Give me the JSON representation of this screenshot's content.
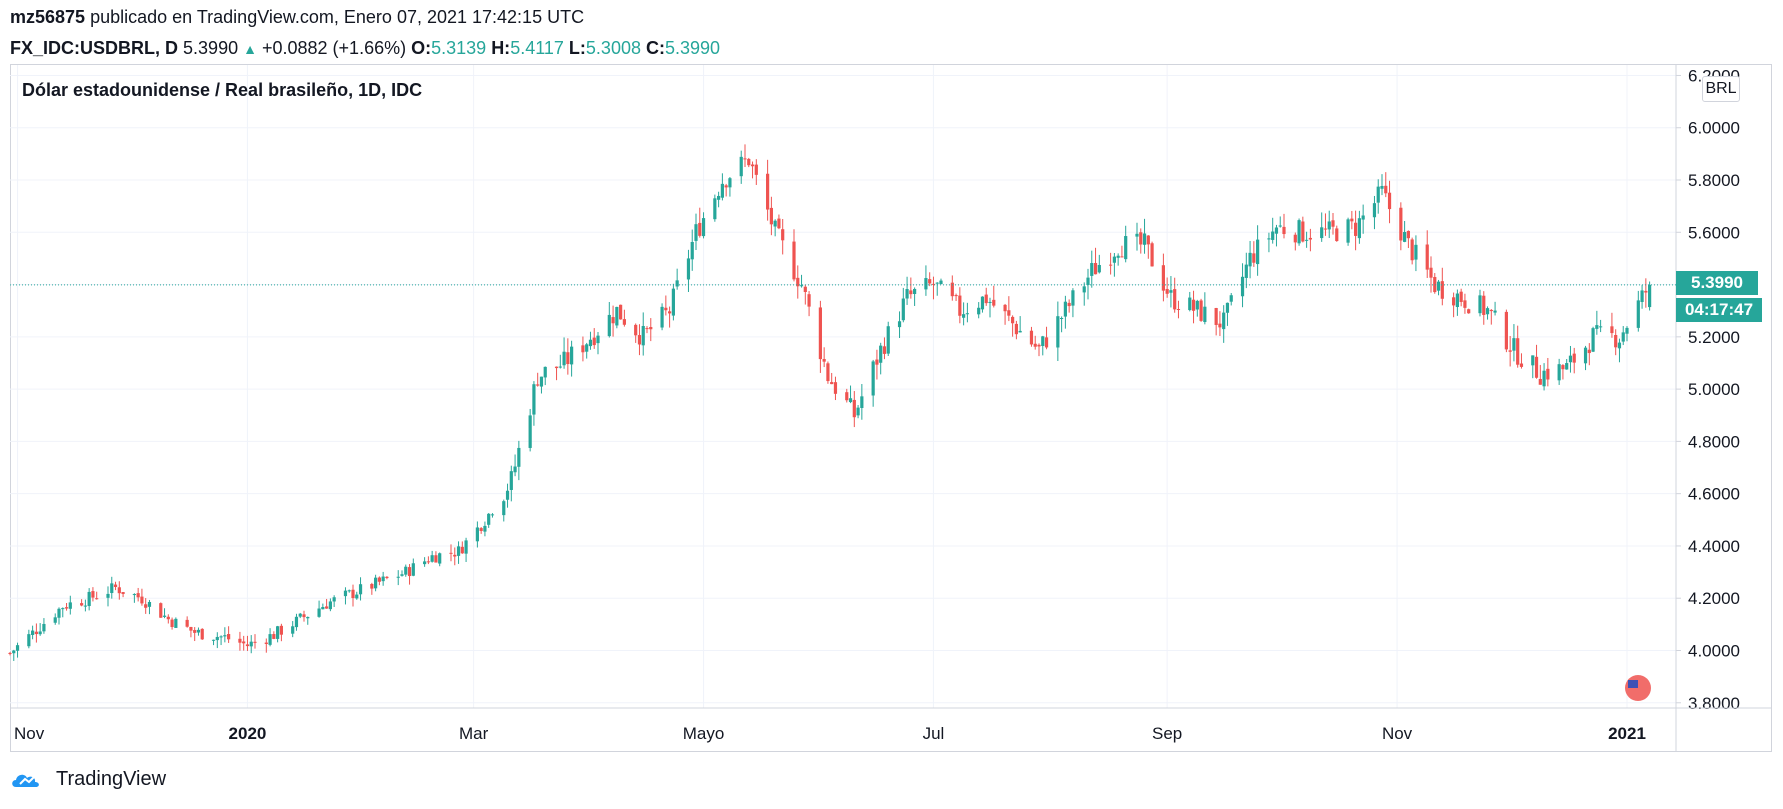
{
  "header": {
    "author": "mz56875",
    "published_text": "publicado en TradingView.com, Enero 07, 2021 17:42:15 UTC",
    "symbol": "FX_IDC:USDBRL, D",
    "last": "5.3990",
    "change_arrow": "▲",
    "change": "+0.0882 (+1.66%)",
    "o_label": "O:",
    "o_value": "5.3139",
    "h_label": "H:",
    "h_value": "5.4117",
    "l_label": "L:",
    "l_value": "5.3008",
    "c_label": "C:",
    "c_value": "5.3990"
  },
  "chart_title": "Dólar estadounidense / Real brasileño, 1D, IDC",
  "currency_badge": "BRL",
  "price_tag": "5.3990",
  "countdown_tag": "04:17:47",
  "footer_brand": "TradingView",
  "colors": {
    "up": "#26a69a",
    "down": "#ef5350",
    "grid": "#f0f3fa",
    "axis_text": "#131722"
  },
  "chart_data": {
    "type": "candlestick",
    "title": "Dólar estadounidense / Real brasileño, 1D, IDC",
    "symbol": "FX_IDC:USDBRL",
    "interval": "1D",
    "ylim": [
      3.78,
      6.24
    ],
    "xlim": [
      "2019-10-30",
      "2021-01-14"
    ],
    "y_ticks": [
      "6.2000",
      "6.0000",
      "5.8000",
      "5.6000",
      "5.4000",
      "5.2000",
      "5.0000",
      "4.8000",
      "4.6000",
      "4.4000",
      "4.2000",
      "4.0000",
      "3.8000"
    ],
    "x_ticks": [
      {
        "label": "Nov",
        "date": "2019-11-01",
        "bold": false
      },
      {
        "label": "2020",
        "date": "2020-01-01",
        "bold": true
      },
      {
        "label": "Mar",
        "date": "2020-03-01",
        "bold": false
      },
      {
        "label": "Mayo",
        "date": "2020-05-01",
        "bold": false
      },
      {
        "label": "Jul",
        "date": "2020-07-01",
        "bold": false
      },
      {
        "label": "Sep",
        "date": "2020-09-01",
        "bold": false
      },
      {
        "label": "Nov",
        "date": "2020-11-01",
        "bold": false
      },
      {
        "label": "2021",
        "date": "2021-01-01",
        "bold": true
      }
    ],
    "last_price": 5.399,
    "close_path": [
      [
        "2019-10-30",
        3.99
      ],
      [
        "2019-11-06",
        4.08
      ],
      [
        "2019-11-13",
        4.17
      ],
      [
        "2019-11-20",
        4.2
      ],
      [
        "2019-11-27",
        4.24
      ],
      [
        "2019-12-04",
        4.2
      ],
      [
        "2019-12-11",
        4.12
      ],
      [
        "2019-12-18",
        4.07
      ],
      [
        "2019-12-26",
        4.05
      ],
      [
        "2020-01-01",
        4.02
      ],
      [
        "2020-01-08",
        4.06
      ],
      [
        "2020-01-15",
        4.12
      ],
      [
        "2020-01-22",
        4.18
      ],
      [
        "2020-01-29",
        4.22
      ],
      [
        "2020-02-05",
        4.26
      ],
      [
        "2020-02-12",
        4.3
      ],
      [
        "2020-02-19",
        4.36
      ],
      [
        "2020-02-26",
        4.38
      ],
      [
        "2020-03-04",
        4.5
      ],
      [
        "2020-03-11",
        4.65
      ],
      [
        "2020-03-18",
        5.05
      ],
      [
        "2020-03-25",
        5.1
      ],
      [
        "2020-04-01",
        5.2
      ],
      [
        "2020-04-08",
        5.3
      ],
      [
        "2020-04-15",
        5.2
      ],
      [
        "2020-04-22",
        5.3
      ],
      [
        "2020-04-29",
        5.6
      ],
      [
        "2020-05-06",
        5.8
      ],
      [
        "2020-05-13",
        5.88
      ],
      [
        "2020-05-20",
        5.6
      ],
      [
        "2020-05-27",
        5.4
      ],
      [
        "2020-06-03",
        5.05
      ],
      [
        "2020-06-10",
        4.9
      ],
      [
        "2020-06-17",
        5.15
      ],
      [
        "2020-06-24",
        5.35
      ],
      [
        "2020-07-01",
        5.4
      ],
      [
        "2020-07-08",
        5.3
      ],
      [
        "2020-07-15",
        5.35
      ],
      [
        "2020-07-22",
        5.25
      ],
      [
        "2020-07-29",
        5.15
      ],
      [
        "2020-08-05",
        5.3
      ],
      [
        "2020-08-12",
        5.45
      ],
      [
        "2020-08-19",
        5.55
      ],
      [
        "2020-08-26",
        5.55
      ],
      [
        "2020-09-02",
        5.35
      ],
      [
        "2020-09-09",
        5.3
      ],
      [
        "2020-09-16",
        5.25
      ],
      [
        "2020-09-23",
        5.5
      ],
      [
        "2020-09-30",
        5.62
      ],
      [
        "2020-10-07",
        5.6
      ],
      [
        "2020-10-14",
        5.6
      ],
      [
        "2020-10-21",
        5.62
      ],
      [
        "2020-10-28",
        5.75
      ],
      [
        "2020-11-04",
        5.55
      ],
      [
        "2020-11-11",
        5.4
      ],
      [
        "2020-11-18",
        5.35
      ],
      [
        "2020-11-25",
        5.3
      ],
      [
        "2020-12-02",
        5.15
      ],
      [
        "2020-12-09",
        5.06
      ],
      [
        "2020-12-16",
        5.08
      ],
      [
        "2020-12-23",
        5.2
      ],
      [
        "2020-12-30",
        5.2
      ],
      [
        "2021-01-07",
        5.399
      ]
    ]
  }
}
